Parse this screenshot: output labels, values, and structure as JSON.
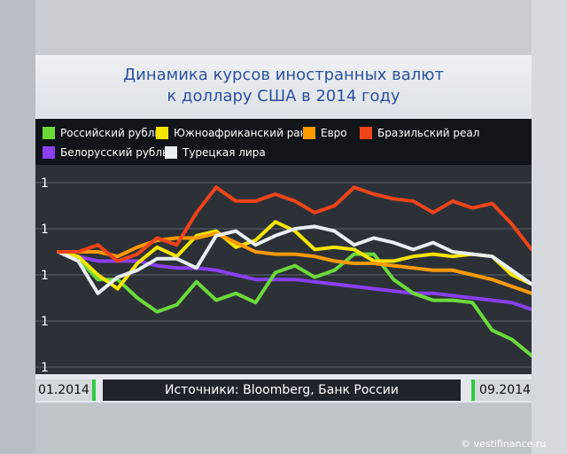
{
  "header": {
    "title_line1": "Динамика курсов иностранных валют",
    "title_line2": "к доллару США в 2014 году"
  },
  "footer": {
    "date_start": "01.2014",
    "date_end": "09.2014",
    "source": "Источники: Bloomberg, Банк России"
  },
  "watermark": "© vestifinance.ru",
  "colors": {
    "background": "#c9cdd1",
    "plot_background": "#2c3138",
    "legend_background": "#111418",
    "title_text": "#2f4fa0",
    "accent": "#2ecc40"
  },
  "chart_data": {
    "type": "line",
    "title": "Динамика курсов иностранных валют к доллару США в 2014 году",
    "x_range": [
      "01.2014",
      "09.2014"
    ],
    "y_tick_labels": [
      "1",
      "1",
      "1",
      "1",
      "1"
    ],
    "grid": true,
    "legend_position": "top",
    "series": [
      {
        "name": "Российский рубль",
        "color": "#6cd93a",
        "values": [
          1.0,
          0.97,
          0.88,
          0.88,
          0.8,
          0.74,
          0.77,
          0.87,
          0.79,
          0.82,
          0.78,
          0.91,
          0.94,
          0.89,
          0.92,
          0.99,
          0.99,
          0.88,
          0.82,
          0.79,
          0.79,
          0.78,
          0.66,
          0.62,
          0.55
        ]
      },
      {
        "name": "Южноафриканский ранд",
        "color": "#f5e400",
        "values": [
          1.0,
          0.98,
          0.9,
          0.84,
          0.95,
          1.02,
          0.98,
          1.07,
          1.09,
          1.02,
          1.05,
          1.13,
          1.09,
          1.01,
          1.02,
          1.01,
          0.96,
          0.96,
          0.98,
          0.99,
          0.98,
          0.99,
          0.98,
          0.9,
          0.86
        ]
      },
      {
        "name": "Евро",
        "color": "#ff9a00",
        "values": [
          1.0,
          1.0,
          1.0,
          0.98,
          1.02,
          1.05,
          1.06,
          1.06,
          1.08,
          1.04,
          1.0,
          0.99,
          0.99,
          0.98,
          0.96,
          0.95,
          0.95,
          0.94,
          0.93,
          0.92,
          0.92,
          0.9,
          0.88,
          0.85,
          0.82
        ]
      },
      {
        "name": "Бразильский реал",
        "color": "#ee4418",
        "values": [
          1.0,
          1.0,
          1.03,
          0.96,
          0.99,
          1.06,
          1.03,
          1.17,
          1.28,
          1.22,
          1.22,
          1.25,
          1.22,
          1.17,
          1.2,
          1.28,
          1.25,
          1.23,
          1.22,
          1.17,
          1.22,
          1.19,
          1.21,
          1.12,
          1.01
        ]
      },
      {
        "name": "Белорусский рубль",
        "color": "#8a3ff0",
        "values": [
          1.0,
          0.98,
          0.96,
          0.96,
          0.96,
          0.94,
          0.93,
          0.93,
          0.92,
          0.9,
          0.88,
          0.88,
          0.88,
          0.87,
          0.86,
          0.85,
          0.84,
          0.83,
          0.82,
          0.82,
          0.81,
          0.8,
          0.79,
          0.78,
          0.75
        ]
      },
      {
        "name": "Турецкая лира",
        "color": "#e8eef2",
        "values": [
          1.0,
          0.96,
          0.82,
          0.89,
          0.92,
          0.97,
          0.97,
          0.93,
          1.07,
          1.09,
          1.03,
          1.07,
          1.1,
          1.11,
          1.09,
          1.03,
          1.06,
          1.04,
          1.01,
          1.04,
          1.0,
          0.99,
          0.98,
          0.92,
          0.86
        ]
      }
    ]
  }
}
